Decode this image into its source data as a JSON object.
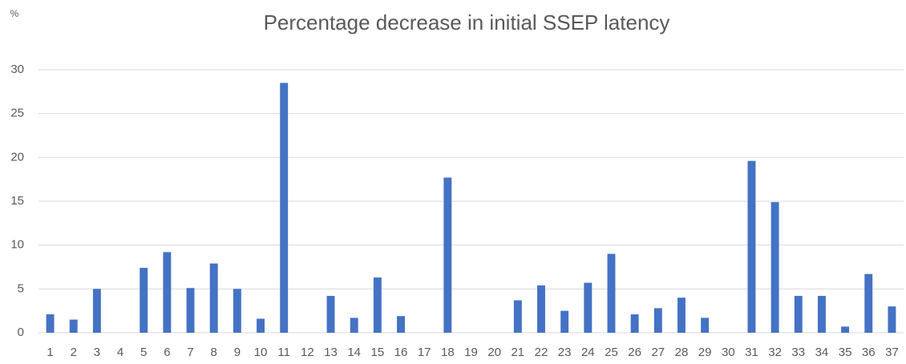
{
  "chart_data": {
    "type": "bar",
    "title": "Percentage decrease in initial SSEP latency",
    "y_label": "%",
    "categories": [
      "1",
      "2",
      "3",
      "4",
      "5",
      "6",
      "7",
      "8",
      "9",
      "10",
      "11",
      "12",
      "13",
      "14",
      "15",
      "16",
      "17",
      "18",
      "19",
      "20",
      "21",
      "22",
      "23",
      "24",
      "25",
      "26",
      "27",
      "28",
      "29",
      "30",
      "31",
      "32",
      "33",
      "34",
      "35",
      "36",
      "37"
    ],
    "values": [
      2.1,
      1.5,
      5.0,
      0,
      7.4,
      9.2,
      5.1,
      7.9,
      5.0,
      1.6,
      28.5,
      0,
      4.2,
      1.7,
      6.3,
      1.9,
      0,
      17.7,
      0,
      0,
      3.7,
      5.4,
      2.5,
      5.7,
      9.0,
      2.1,
      2.8,
      4.0,
      1.7,
      0,
      19.6,
      14.9,
      4.2,
      4.2,
      0.7,
      6.7,
      3.0
    ],
    "color": "#4472c4",
    "ylim": [
      0,
      30
    ],
    "yticks": [
      0,
      5,
      10,
      15,
      20,
      25,
      30
    ],
    "grid": true
  }
}
